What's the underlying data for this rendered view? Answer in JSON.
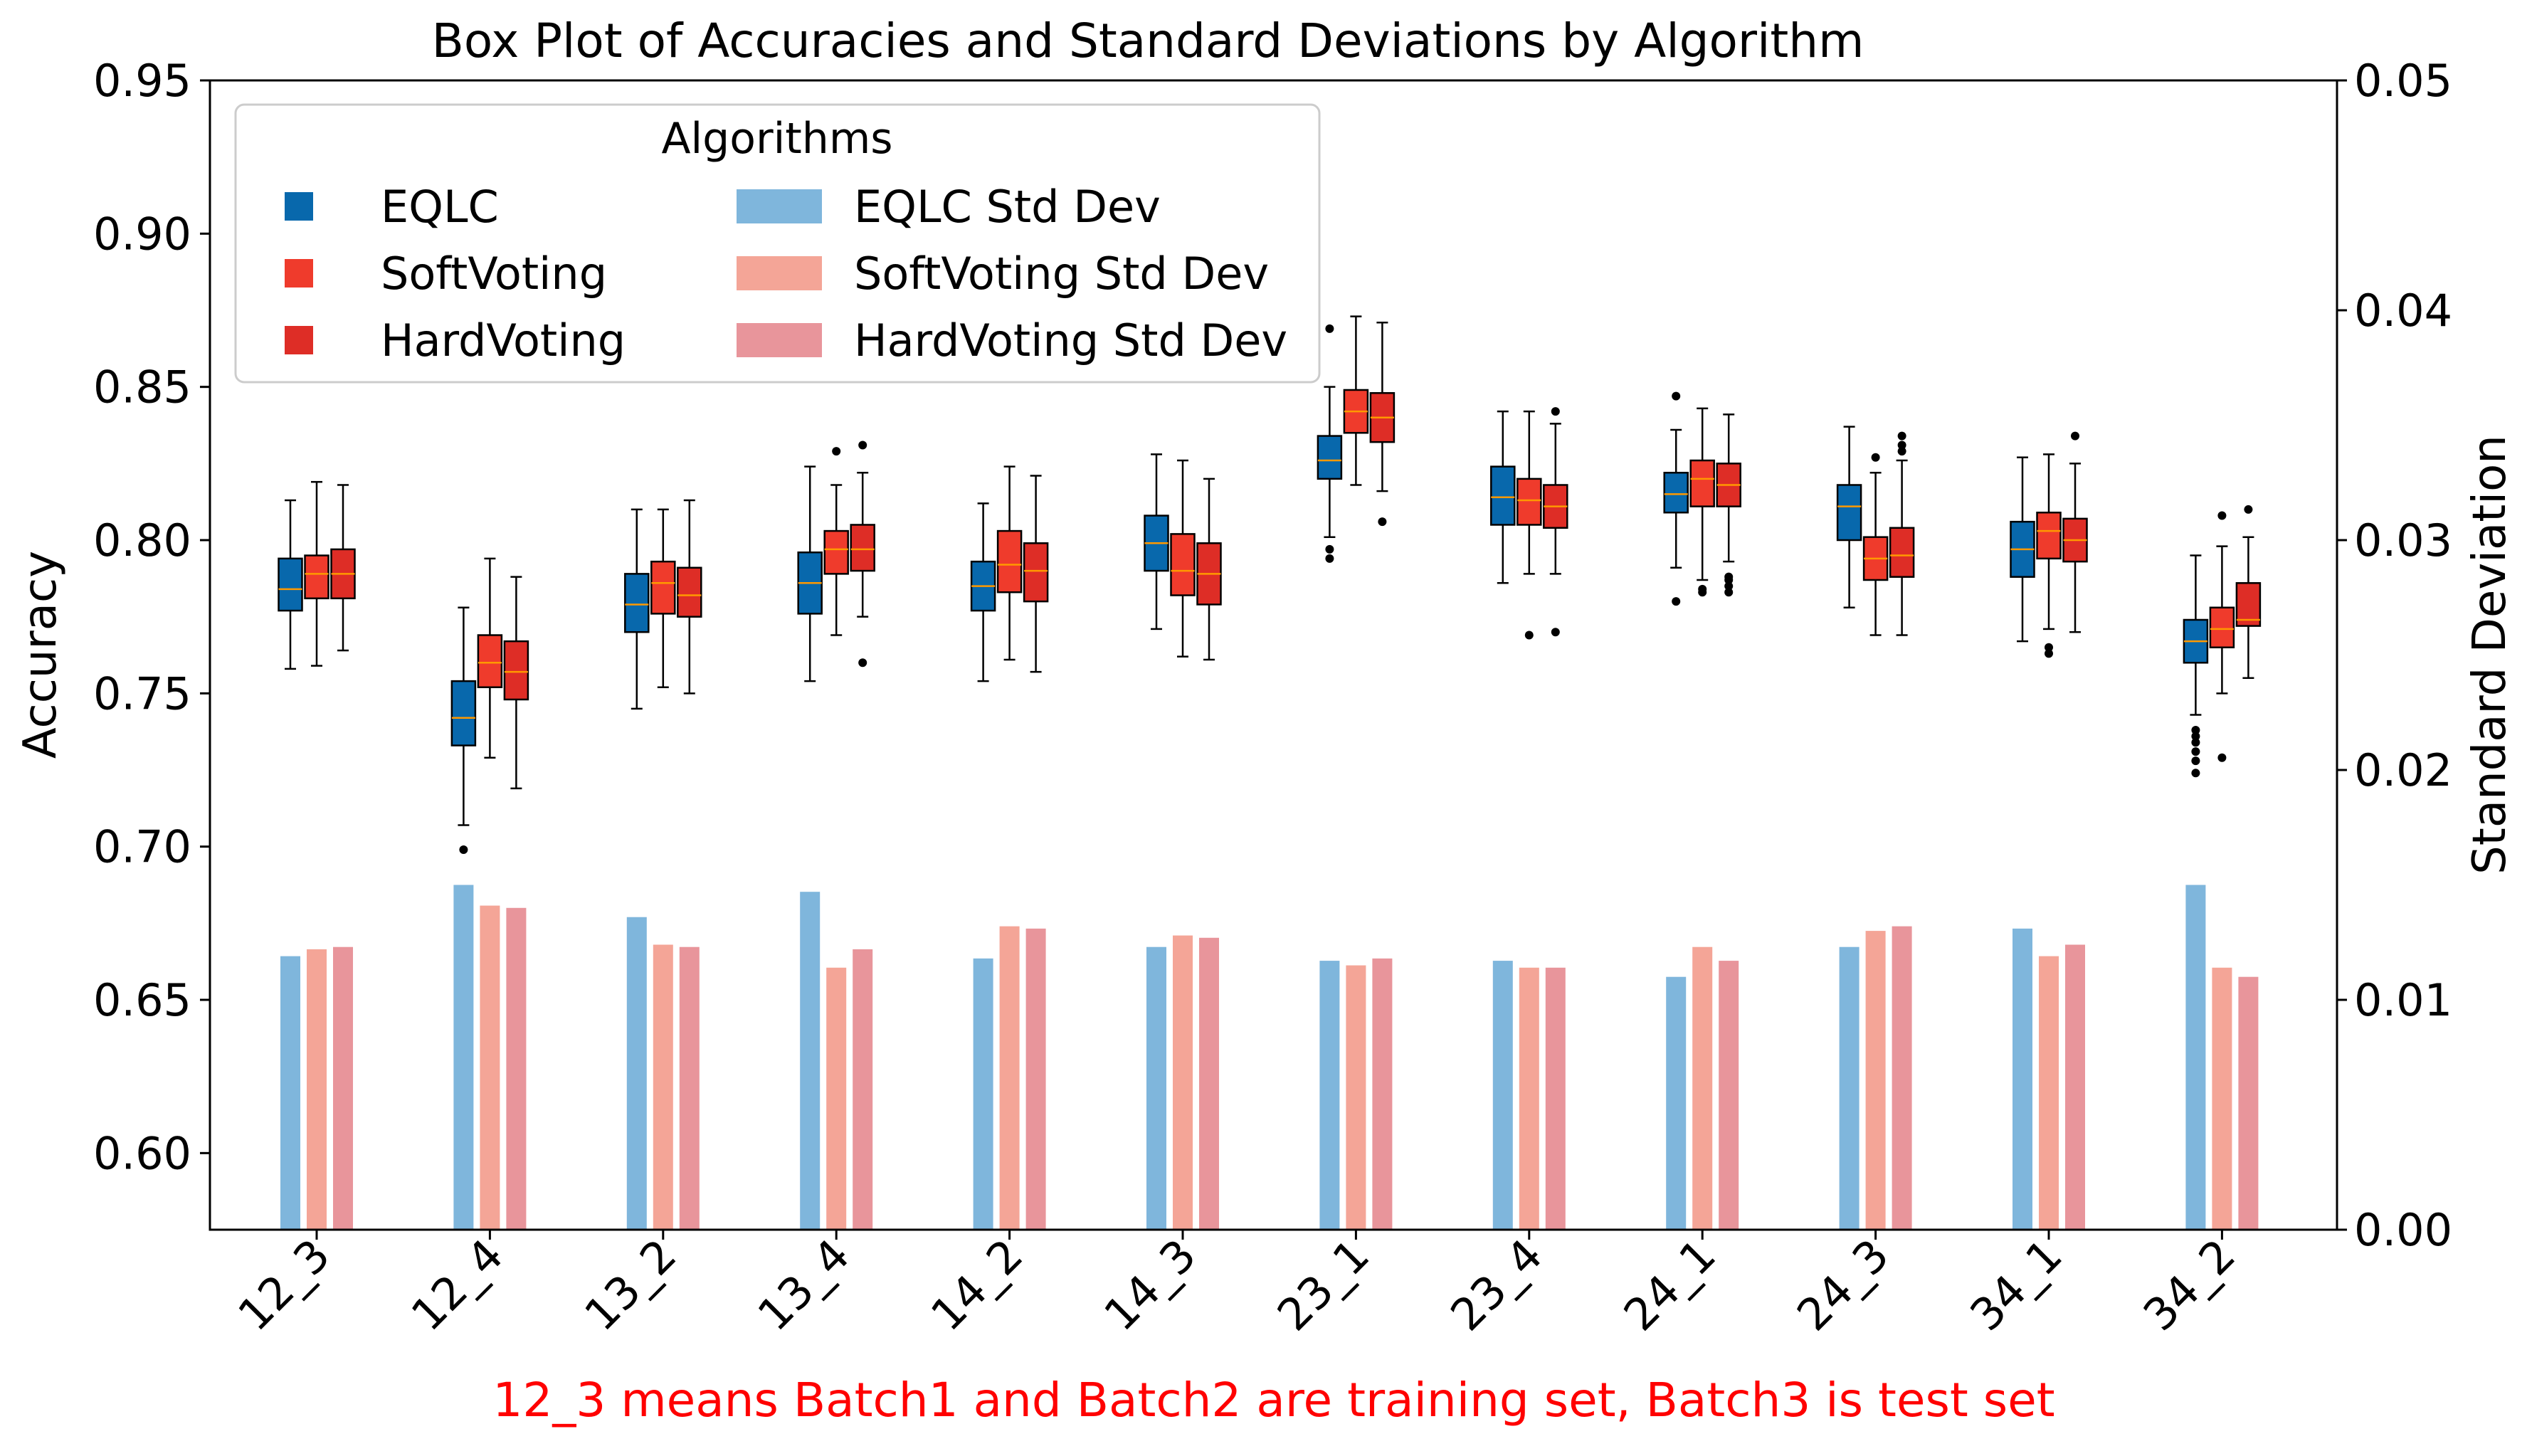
{
  "chart_data": {
    "type": "box+bar",
    "title": "Box Plot of Accuracies and Standard Deviations by Algorithm",
    "xlabel": "",
    "ylabel_left": "Accuracy",
    "ylabel_right": "Standard Deviation",
    "ylim_left": [
      0.575,
      0.95
    ],
    "ylim_right": [
      0.0,
      0.05
    ],
    "yticks_left": [
      "0.60",
      "0.65",
      "0.70",
      "0.75",
      "0.80",
      "0.85",
      "0.90",
      "0.95"
    ],
    "yticks_right": [
      "0.00",
      "0.01",
      "0.02",
      "0.03",
      "0.04",
      "0.05"
    ],
    "categories": [
      "12_3",
      "12_4",
      "13_2",
      "13_4",
      "14_2",
      "14_3",
      "23_1",
      "23_4",
      "24_1",
      "24_3",
      "34_1",
      "34_2"
    ],
    "caption": "12_3 means Batch1 and Batch2 are training set, Batch3 is test set",
    "legend": {
      "title": "Algorithms",
      "location": "upper-left",
      "entries": [
        "EQLC",
        "SoftVoting",
        "HardVoting",
        "EQLC Std Dev",
        "SoftVoting Std Dev",
        "HardVoting Std Dev"
      ]
    },
    "colors": {
      "eqlc_box": "#0868ac",
      "softvoting_box": "#ef3b2c",
      "hardvoting_box": "#de2d26",
      "median": "#ff9900",
      "eqlc_bar": "#7fb6dc",
      "softvoting_bar": "#f4a597",
      "hardvoting_bar": "#e8959b"
    },
    "boxplots": [
      {
        "name": "EQLC",
        "stats": [
          {
            "whislo": 0.758,
            "q1": 0.777,
            "med": 0.784,
            "q3": 0.794,
            "whishi": 0.813,
            "fliers": []
          },
          {
            "whislo": 0.707,
            "q1": 0.733,
            "med": 0.742,
            "q3": 0.754,
            "whishi": 0.778,
            "fliers": [
              0.699
            ]
          },
          {
            "whislo": 0.745,
            "q1": 0.77,
            "med": 0.779,
            "q3": 0.789,
            "whishi": 0.81,
            "fliers": []
          },
          {
            "whislo": 0.754,
            "q1": 0.776,
            "med": 0.786,
            "q3": 0.796,
            "whishi": 0.824,
            "fliers": []
          },
          {
            "whislo": 0.754,
            "q1": 0.777,
            "med": 0.785,
            "q3": 0.793,
            "whishi": 0.812,
            "fliers": []
          },
          {
            "whislo": 0.771,
            "q1": 0.79,
            "med": 0.799,
            "q3": 0.808,
            "whishi": 0.828,
            "fliers": []
          },
          {
            "whislo": 0.801,
            "q1": 0.82,
            "med": 0.826,
            "q3": 0.834,
            "whishi": 0.85,
            "fliers": [
              0.869,
              0.797,
              0.794
            ]
          },
          {
            "whislo": 0.786,
            "q1": 0.805,
            "med": 0.814,
            "q3": 0.824,
            "whishi": 0.842,
            "fliers": []
          },
          {
            "whislo": 0.791,
            "q1": 0.809,
            "med": 0.815,
            "q3": 0.822,
            "whishi": 0.836,
            "fliers": [
              0.847,
              0.78
            ]
          },
          {
            "whislo": 0.778,
            "q1": 0.8,
            "med": 0.811,
            "q3": 0.818,
            "whishi": 0.837,
            "fliers": []
          },
          {
            "whislo": 0.767,
            "q1": 0.788,
            "med": 0.797,
            "q3": 0.806,
            "whishi": 0.827,
            "fliers": []
          },
          {
            "whislo": 0.743,
            "q1": 0.76,
            "med": 0.767,
            "q3": 0.774,
            "whishi": 0.795,
            "fliers": [
              0.738,
              0.736,
              0.734,
              0.731,
              0.728,
              0.724
            ]
          }
        ]
      },
      {
        "name": "SoftVoting",
        "stats": [
          {
            "whislo": 0.759,
            "q1": 0.781,
            "med": 0.789,
            "q3": 0.795,
            "whishi": 0.819,
            "fliers": []
          },
          {
            "whislo": 0.729,
            "q1": 0.752,
            "med": 0.76,
            "q3": 0.769,
            "whishi": 0.794,
            "fliers": []
          },
          {
            "whislo": 0.752,
            "q1": 0.776,
            "med": 0.786,
            "q3": 0.793,
            "whishi": 0.81,
            "fliers": []
          },
          {
            "whislo": 0.769,
            "q1": 0.789,
            "med": 0.797,
            "q3": 0.803,
            "whishi": 0.818,
            "fliers": [
              0.829
            ]
          },
          {
            "whislo": 0.761,
            "q1": 0.783,
            "med": 0.792,
            "q3": 0.803,
            "whishi": 0.824,
            "fliers": []
          },
          {
            "whislo": 0.762,
            "q1": 0.782,
            "med": 0.79,
            "q3": 0.802,
            "whishi": 0.826,
            "fliers": []
          },
          {
            "whislo": 0.818,
            "q1": 0.835,
            "med": 0.842,
            "q3": 0.849,
            "whishi": 0.873,
            "fliers": []
          },
          {
            "whislo": 0.789,
            "q1": 0.805,
            "med": 0.813,
            "q3": 0.82,
            "whishi": 0.842,
            "fliers": [
              0.769
            ]
          },
          {
            "whislo": 0.787,
            "q1": 0.811,
            "med": 0.82,
            "q3": 0.826,
            "whishi": 0.843,
            "fliers": [
              0.784,
              0.783
            ]
          },
          {
            "whislo": 0.769,
            "q1": 0.787,
            "med": 0.794,
            "q3": 0.801,
            "whishi": 0.822,
            "fliers": [
              0.827
            ]
          },
          {
            "whislo": 0.771,
            "q1": 0.794,
            "med": 0.803,
            "q3": 0.809,
            "whishi": 0.828,
            "fliers": [
              0.765,
              0.763
            ]
          },
          {
            "whislo": 0.75,
            "q1": 0.765,
            "med": 0.771,
            "q3": 0.778,
            "whishi": 0.798,
            "fliers": [
              0.808,
              0.729
            ]
          }
        ]
      },
      {
        "name": "HardVoting",
        "stats": [
          {
            "whislo": 0.764,
            "q1": 0.781,
            "med": 0.789,
            "q3": 0.797,
            "whishi": 0.818,
            "fliers": []
          },
          {
            "whislo": 0.719,
            "q1": 0.748,
            "med": 0.757,
            "q3": 0.767,
            "whishi": 0.788,
            "fliers": []
          },
          {
            "whislo": 0.75,
            "q1": 0.775,
            "med": 0.782,
            "q3": 0.791,
            "whishi": 0.813,
            "fliers": []
          },
          {
            "whislo": 0.775,
            "q1": 0.79,
            "med": 0.797,
            "q3": 0.805,
            "whishi": 0.822,
            "fliers": [
              0.831,
              0.76
            ]
          },
          {
            "whislo": 0.757,
            "q1": 0.78,
            "med": 0.79,
            "q3": 0.799,
            "whishi": 0.821,
            "fliers": []
          },
          {
            "whislo": 0.761,
            "q1": 0.779,
            "med": 0.789,
            "q3": 0.799,
            "whishi": 0.82,
            "fliers": []
          },
          {
            "whislo": 0.816,
            "q1": 0.832,
            "med": 0.84,
            "q3": 0.848,
            "whishi": 0.871,
            "fliers": [
              0.806
            ]
          },
          {
            "whislo": 0.789,
            "q1": 0.804,
            "med": 0.811,
            "q3": 0.818,
            "whishi": 0.838,
            "fliers": [
              0.842,
              0.77
            ]
          },
          {
            "whislo": 0.793,
            "q1": 0.811,
            "med": 0.818,
            "q3": 0.825,
            "whishi": 0.841,
            "fliers": [
              0.788,
              0.787,
              0.785,
              0.783
            ]
          },
          {
            "whislo": 0.769,
            "q1": 0.788,
            "med": 0.795,
            "q3": 0.804,
            "whishi": 0.826,
            "fliers": [
              0.834,
              0.831,
              0.829
            ]
          },
          {
            "whislo": 0.77,
            "q1": 0.793,
            "med": 0.8,
            "q3": 0.807,
            "whishi": 0.825,
            "fliers": [
              0.834
            ]
          },
          {
            "whislo": 0.755,
            "q1": 0.772,
            "med": 0.774,
            "q3": 0.786,
            "whishi": 0.801,
            "fliers": [
              0.81
            ]
          }
        ]
      }
    ],
    "std_bars": [
      {
        "name": "EQLC Std Dev",
        "values": [
          0.0119,
          0.015,
          0.0136,
          0.0147,
          0.0118,
          0.0123,
          0.0117,
          0.0117,
          0.011,
          0.0123,
          0.0131,
          0.015
        ]
      },
      {
        "name": "SoftVoting Std Dev",
        "values": [
          0.0122,
          0.0141,
          0.0124,
          0.0114,
          0.0132,
          0.0128,
          0.0115,
          0.0114,
          0.0123,
          0.013,
          0.0119,
          0.0114
        ]
      },
      {
        "name": "HardVoting Std Dev",
        "values": [
          0.0123,
          0.014,
          0.0123,
          0.0122,
          0.0131,
          0.0127,
          0.0118,
          0.0114,
          0.0117,
          0.0132,
          0.0124,
          0.011
        ]
      }
    ]
  }
}
